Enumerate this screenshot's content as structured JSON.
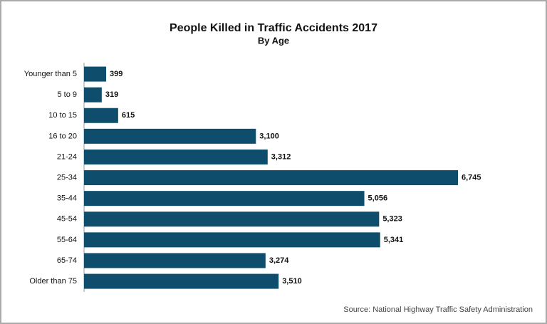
{
  "chart_data": {
    "type": "barh",
    "title": "People Killed in Traffic Accidents 2017",
    "subtitle": "By Age",
    "categories": [
      "Younger than 5",
      "5 to 9",
      "10 to 15",
      "16 to 20",
      "21-24",
      "25-34",
      "35-44",
      "45-54",
      "55-64",
      "65-74",
      "Older than 75"
    ],
    "values": [
      399,
      319,
      615,
      3100,
      3312,
      6745,
      5056,
      5323,
      5341,
      3274,
      3510
    ],
    "value_labels": [
      "399",
      "319",
      "615",
      "3,100",
      "3,312",
      "6,745",
      "5,056",
      "5,323",
      "5,341",
      "3,274",
      "3,510"
    ],
    "color": "#0e4d6b",
    "source": "Source: National Highway Traffic Safety Administration"
  }
}
